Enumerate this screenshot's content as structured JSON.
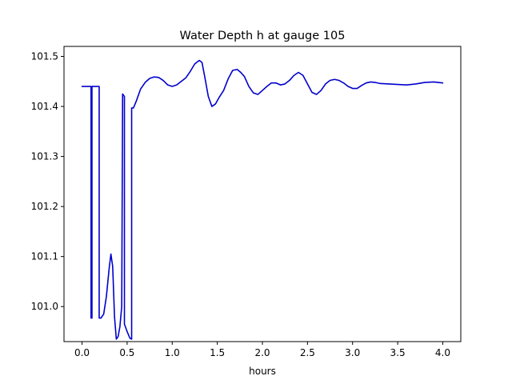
{
  "chart_data": {
    "type": "line",
    "title": "Water Depth h at gauge 105",
    "xlabel": "hours",
    "ylabel": "",
    "xlim": [
      -0.2,
      4.2
    ],
    "ylim": [
      100.93,
      101.52
    ],
    "xticks": [
      0.0,
      0.5,
      1.0,
      1.5,
      2.0,
      2.5,
      3.0,
      3.5,
      4.0
    ],
    "xtick_labels": [
      "0.0",
      "0.5",
      "1.0",
      "1.5",
      "2.0",
      "2.5",
      "3.0",
      "3.5",
      "4.0"
    ],
    "yticks": [
      101.0,
      101.1,
      101.2,
      101.3,
      101.4,
      101.5
    ],
    "ytick_labels": [
      "101.0",
      "101.1",
      "101.2",
      "101.3",
      "101.4",
      "101.5"
    ],
    "grid": false,
    "series": [
      {
        "color": "#0000cc",
        "x": [
          0.0,
          0.1,
          0.1,
          0.11,
          0.11,
          0.19,
          0.19,
          0.21,
          0.24,
          0.27,
          0.3,
          0.32,
          0.34,
          0.36,
          0.38,
          0.4,
          0.42,
          0.44,
          0.45,
          0.45,
          0.47,
          0.47,
          0.5,
          0.53,
          0.55,
          0.55,
          0.57,
          0.6,
          0.65,
          0.7,
          0.75,
          0.8,
          0.85,
          0.9,
          0.95,
          1.0,
          1.05,
          1.1,
          1.15,
          1.2,
          1.25,
          1.3,
          1.33,
          1.36,
          1.4,
          1.44,
          1.48,
          1.52,
          1.57,
          1.62,
          1.67,
          1.72,
          1.76,
          1.8,
          1.85,
          1.9,
          1.95,
          2.0,
          2.05,
          2.1,
          2.15,
          2.2,
          2.25,
          2.3,
          2.35,
          2.4,
          2.45,
          2.5,
          2.55,
          2.6,
          2.65,
          2.7,
          2.75,
          2.8,
          2.85,
          2.9,
          2.95,
          3.0,
          3.05,
          3.1,
          3.15,
          3.2,
          3.25,
          3.3,
          3.4,
          3.5,
          3.6,
          3.7,
          3.8,
          3.9,
          4.0
        ],
        "y": [
          101.44,
          101.44,
          100.977,
          100.977,
          101.44,
          101.44,
          100.977,
          100.977,
          100.985,
          101.02,
          101.075,
          101.105,
          101.08,
          100.98,
          100.935,
          100.94,
          100.96,
          101.0,
          101.425,
          101.425,
          101.42,
          100.965,
          100.95,
          100.937,
          100.935,
          101.397,
          101.397,
          101.41,
          101.435,
          101.448,
          101.456,
          101.459,
          101.458,
          101.452,
          101.443,
          101.44,
          101.443,
          101.45,
          101.457,
          101.47,
          101.485,
          101.492,
          101.488,
          101.46,
          101.42,
          101.4,
          101.405,
          101.418,
          101.432,
          101.455,
          101.472,
          101.474,
          101.468,
          101.46,
          101.44,
          101.427,
          101.424,
          101.432,
          101.44,
          101.447,
          101.447,
          101.443,
          101.445,
          101.452,
          101.462,
          101.468,
          101.462,
          101.445,
          101.428,
          101.424,
          101.432,
          101.445,
          101.452,
          101.454,
          101.452,
          101.447,
          101.44,
          101.436,
          101.436,
          101.442,
          101.447,
          101.449,
          101.448,
          101.446,
          101.445,
          101.444,
          101.443,
          101.445,
          101.448,
          101.449,
          101.447
        ]
      }
    ]
  }
}
